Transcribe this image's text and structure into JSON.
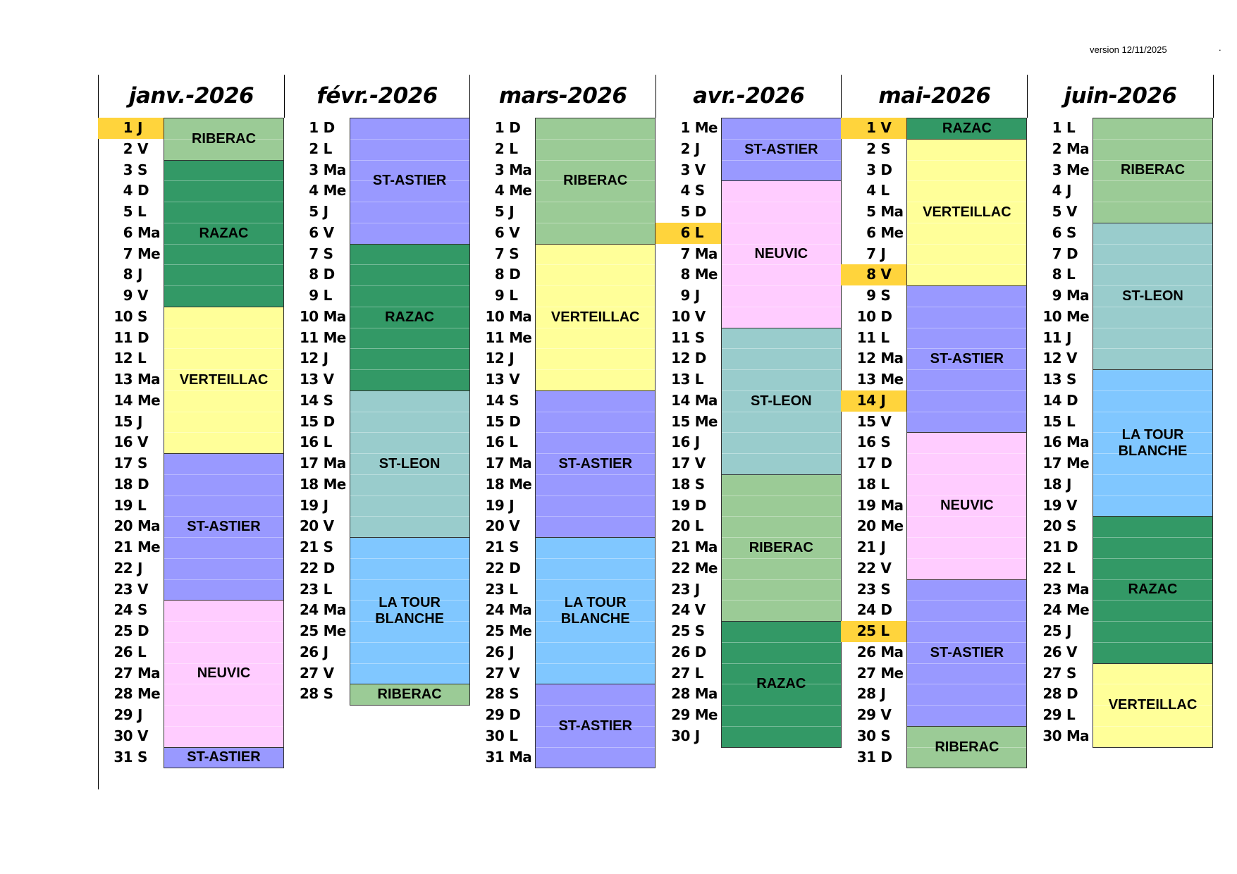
{
  "version": "version 12/11/2025",
  "version_mark": ".",
  "highlight_color": "#ffd43c",
  "colors": {
    "RIBERAC": "#9bcb96",
    "RAZAC": "#339966",
    "VERTEILLAC": "#ffff99",
    "ST-ASTIER": "#9999ff",
    "NEUVIC": "#ffccff",
    "ST-LEON": "#99cccc",
    "LA TOUR BLANCHE": "#80c7ff"
  },
  "months": [
    {
      "title": "janv.-2026",
      "days": [
        {
          "n": "1",
          "d": "J"
        },
        {
          "n": "2",
          "d": "V"
        },
        {
          "n": "3",
          "d": "S"
        },
        {
          "n": "4",
          "d": "D"
        },
        {
          "n": "5",
          "d": "L"
        },
        {
          "n": "6",
          "d": "Ma"
        },
        {
          "n": "7",
          "d": "Me"
        },
        {
          "n": "8",
          "d": "J"
        },
        {
          "n": "9",
          "d": "V"
        },
        {
          "n": "10",
          "d": "S"
        },
        {
          "n": "11",
          "d": "D"
        },
        {
          "n": "12",
          "d": "L"
        },
        {
          "n": "13",
          "d": "Ma"
        },
        {
          "n": "14",
          "d": "Me"
        },
        {
          "n": "15",
          "d": "J"
        },
        {
          "n": "16",
          "d": "V"
        },
        {
          "n": "17",
          "d": "S"
        },
        {
          "n": "18",
          "d": "D"
        },
        {
          "n": "19",
          "d": "L"
        },
        {
          "n": "20",
          "d": "Ma"
        },
        {
          "n": "21",
          "d": "Me"
        },
        {
          "n": "22",
          "d": "J"
        },
        {
          "n": "23",
          "d": "V"
        },
        {
          "n": "24",
          "d": "S"
        },
        {
          "n": "25",
          "d": "D"
        },
        {
          "n": "26",
          "d": "L"
        },
        {
          "n": "27",
          "d": "Ma"
        },
        {
          "n": "28",
          "d": "Me"
        },
        {
          "n": "29",
          "d": "J"
        },
        {
          "n": "30",
          "d": "V"
        },
        {
          "n": "31",
          "d": "S"
        }
      ],
      "highlighted": [
        "1"
      ],
      "blocks": [
        {
          "label": "RIBERAC",
          "start": 1,
          "end": 2
        },
        {
          "label": "RAZAC",
          "start": 3,
          "end": 9
        },
        {
          "label": "VERTEILLAC",
          "start": 10,
          "end": 16
        },
        {
          "label": "ST-ASTIER",
          "start": 17,
          "end": 23
        },
        {
          "label": "NEUVIC",
          "start": 24,
          "end": 30
        },
        {
          "label": "ST-ASTIER",
          "start": 31,
          "end": 31
        }
      ]
    },
    {
      "title": "févr.-2026",
      "days": [
        {
          "n": "1",
          "d": "D"
        },
        {
          "n": "2",
          "d": "L"
        },
        {
          "n": "3",
          "d": "Ma"
        },
        {
          "n": "4",
          "d": "Me"
        },
        {
          "n": "5",
          "d": "J"
        },
        {
          "n": "6",
          "d": "V"
        },
        {
          "n": "7",
          "d": "S"
        },
        {
          "n": "8",
          "d": "D"
        },
        {
          "n": "9",
          "d": "L"
        },
        {
          "n": "10",
          "d": "Ma"
        },
        {
          "n": "11",
          "d": "Me"
        },
        {
          "n": "12",
          "d": "J"
        },
        {
          "n": "13",
          "d": "V"
        },
        {
          "n": "14",
          "d": "S"
        },
        {
          "n": "15",
          "d": "D"
        },
        {
          "n": "16",
          "d": "L"
        },
        {
          "n": "17",
          "d": "Ma"
        },
        {
          "n": "18",
          "d": "Me"
        },
        {
          "n": "19",
          "d": "J"
        },
        {
          "n": "20",
          "d": "V"
        },
        {
          "n": "21",
          "d": "S"
        },
        {
          "n": "22",
          "d": "D"
        },
        {
          "n": "23",
          "d": "L"
        },
        {
          "n": "24",
          "d": "Ma"
        },
        {
          "n": "25",
          "d": "Me"
        },
        {
          "n": "26",
          "d": "J"
        },
        {
          "n": "27",
          "d": "V"
        },
        {
          "n": "28",
          "d": "S"
        }
      ],
      "highlighted": [],
      "blocks": [
        {
          "label": "ST-ASTIER",
          "start": 1,
          "end": 6
        },
        {
          "label": "RAZAC",
          "start": 7,
          "end": 13
        },
        {
          "label": "ST-LEON",
          "start": 14,
          "end": 20
        },
        {
          "label": "LA TOUR BLANCHE",
          "start": 21,
          "end": 27
        },
        {
          "label": "RIBERAC",
          "start": 28,
          "end": 28
        }
      ]
    },
    {
      "title": "mars-2026",
      "days": [
        {
          "n": "1",
          "d": "D"
        },
        {
          "n": "2",
          "d": "L"
        },
        {
          "n": "3",
          "d": "Ma"
        },
        {
          "n": "4",
          "d": "Me"
        },
        {
          "n": "5",
          "d": "J"
        },
        {
          "n": "6",
          "d": "V"
        },
        {
          "n": "7",
          "d": "S"
        },
        {
          "n": "8",
          "d": "D"
        },
        {
          "n": "9",
          "d": "L"
        },
        {
          "n": "10",
          "d": "Ma"
        },
        {
          "n": "11",
          "d": "Me"
        },
        {
          "n": "12",
          "d": "J"
        },
        {
          "n": "13",
          "d": "V"
        },
        {
          "n": "14",
          "d": "S"
        },
        {
          "n": "15",
          "d": "D"
        },
        {
          "n": "16",
          "d": "L"
        },
        {
          "n": "17",
          "d": "Ma"
        },
        {
          "n": "18",
          "d": "Me"
        },
        {
          "n": "19",
          "d": "J"
        },
        {
          "n": "20",
          "d": "V"
        },
        {
          "n": "21",
          "d": "S"
        },
        {
          "n": "22",
          "d": "D"
        },
        {
          "n": "23",
          "d": "L"
        },
        {
          "n": "24",
          "d": "Ma"
        },
        {
          "n": "25",
          "d": "Me"
        },
        {
          "n": "26",
          "d": "J"
        },
        {
          "n": "27",
          "d": "V"
        },
        {
          "n": "28",
          "d": "S"
        },
        {
          "n": "29",
          "d": "D"
        },
        {
          "n": "30",
          "d": "L"
        },
        {
          "n": "31",
          "d": "Ma"
        }
      ],
      "highlighted": [],
      "blocks": [
        {
          "label": "RIBERAC",
          "start": 1,
          "end": 6
        },
        {
          "label": "VERTEILLAC",
          "start": 7,
          "end": 13
        },
        {
          "label": "ST-ASTIER",
          "start": 14,
          "end": 20
        },
        {
          "label": "LA TOUR BLANCHE",
          "start": 21,
          "end": 27
        },
        {
          "label": "ST-ASTIER",
          "start": 28,
          "end": 31
        }
      ]
    },
    {
      "title": "avr.-2026",
      "days": [
        {
          "n": "1",
          "d": "Me"
        },
        {
          "n": "2",
          "d": "J"
        },
        {
          "n": "3",
          "d": "V"
        },
        {
          "n": "4",
          "d": "S"
        },
        {
          "n": "5",
          "d": "D"
        },
        {
          "n": "6",
          "d": "L"
        },
        {
          "n": "7",
          "d": "Ma"
        },
        {
          "n": "8",
          "d": "Me"
        },
        {
          "n": "9",
          "d": "J"
        },
        {
          "n": "10",
          "d": "V"
        },
        {
          "n": "11",
          "d": "S"
        },
        {
          "n": "12",
          "d": "D"
        },
        {
          "n": "13",
          "d": "L"
        },
        {
          "n": "14",
          "d": "Ma"
        },
        {
          "n": "15",
          "d": "Me"
        },
        {
          "n": "16",
          "d": "J"
        },
        {
          "n": "17",
          "d": "V"
        },
        {
          "n": "18",
          "d": "S"
        },
        {
          "n": "19",
          "d": "D"
        },
        {
          "n": "20",
          "d": "L"
        },
        {
          "n": "21",
          "d": "Ma"
        },
        {
          "n": "22",
          "d": "Me"
        },
        {
          "n": "23",
          "d": "J"
        },
        {
          "n": "24",
          "d": "V"
        },
        {
          "n": "25",
          "d": "S"
        },
        {
          "n": "26",
          "d": "D"
        },
        {
          "n": "27",
          "d": "L"
        },
        {
          "n": "28",
          "d": "Ma"
        },
        {
          "n": "29",
          "d": "Me"
        },
        {
          "n": "30",
          "d": "J"
        }
      ],
      "highlighted": [
        "6"
      ],
      "blocks": [
        {
          "label": "ST-ASTIER",
          "start": 1,
          "end": 3
        },
        {
          "label": "NEUVIC",
          "start": 4,
          "end": 10
        },
        {
          "label": "ST-LEON",
          "start": 11,
          "end": 17
        },
        {
          "label": "RIBERAC",
          "start": 18,
          "end": 24
        },
        {
          "label": "RAZAC",
          "start": 25,
          "end": 30
        }
      ]
    },
    {
      "title": "mai-2026",
      "days": [
        {
          "n": "1",
          "d": "V"
        },
        {
          "n": "2",
          "d": "S"
        },
        {
          "n": "3",
          "d": "D"
        },
        {
          "n": "4",
          "d": "L"
        },
        {
          "n": "5",
          "d": "Ma"
        },
        {
          "n": "6",
          "d": "Me"
        },
        {
          "n": "7",
          "d": "J"
        },
        {
          "n": "8",
          "d": "V"
        },
        {
          "n": "9",
          "d": "S"
        },
        {
          "n": "10",
          "d": "D"
        },
        {
          "n": "11",
          "d": "L"
        },
        {
          "n": "12",
          "d": "Ma"
        },
        {
          "n": "13",
          "d": "Me"
        },
        {
          "n": "14",
          "d": "J"
        },
        {
          "n": "15",
          "d": "V"
        },
        {
          "n": "16",
          "d": "S"
        },
        {
          "n": "17",
          "d": "D"
        },
        {
          "n": "18",
          "d": "L"
        },
        {
          "n": "19",
          "d": "Ma"
        },
        {
          "n": "20",
          "d": "Me"
        },
        {
          "n": "21",
          "d": "J"
        },
        {
          "n": "22",
          "d": "V"
        },
        {
          "n": "23",
          "d": "S"
        },
        {
          "n": "24",
          "d": "D"
        },
        {
          "n": "25",
          "d": "L"
        },
        {
          "n": "26",
          "d": "Ma"
        },
        {
          "n": "27",
          "d": "Me"
        },
        {
          "n": "28",
          "d": "J"
        },
        {
          "n": "29",
          "d": "V"
        },
        {
          "n": "30",
          "d": "S"
        },
        {
          "n": "31",
          "d": "D"
        }
      ],
      "highlighted": [
        "1",
        "8",
        "14",
        "25"
      ],
      "blocks": [
        {
          "label": "RAZAC",
          "start": 1,
          "end": 1
        },
        {
          "label": "VERTEILLAC",
          "start": 2,
          "end": 8
        },
        {
          "label": "ST-ASTIER",
          "start": 9,
          "end": 15
        },
        {
          "label": "NEUVIC",
          "start": 16,
          "end": 22
        },
        {
          "label": "ST-ASTIER",
          "start": 23,
          "end": 29
        },
        {
          "label": "RIBERAC",
          "start": 30,
          "end": 31
        }
      ]
    },
    {
      "title": "juin-2026",
      "days": [
        {
          "n": "1",
          "d": "L"
        },
        {
          "n": "2",
          "d": "Ma"
        },
        {
          "n": "3",
          "d": "Me"
        },
        {
          "n": "4",
          "d": "J"
        },
        {
          "n": "5",
          "d": "V"
        },
        {
          "n": "6",
          "d": "S"
        },
        {
          "n": "7",
          "d": "D"
        },
        {
          "n": "8",
          "d": "L"
        },
        {
          "n": "9",
          "d": "Ma"
        },
        {
          "n": "10",
          "d": "Me"
        },
        {
          "n": "11",
          "d": "J"
        },
        {
          "n": "12",
          "d": "V"
        },
        {
          "n": "13",
          "d": "S"
        },
        {
          "n": "14",
          "d": "D"
        },
        {
          "n": "15",
          "d": "L"
        },
        {
          "n": "16",
          "d": "Ma"
        },
        {
          "n": "17",
          "d": "Me"
        },
        {
          "n": "18",
          "d": "J"
        },
        {
          "n": "19",
          "d": "V"
        },
        {
          "n": "20",
          "d": "S"
        },
        {
          "n": "21",
          "d": "D"
        },
        {
          "n": "22",
          "d": "L"
        },
        {
          "n": "23",
          "d": "Ma"
        },
        {
          "n": "24",
          "d": "Me"
        },
        {
          "n": "25",
          "d": "J"
        },
        {
          "n": "26",
          "d": "V"
        },
        {
          "n": "27",
          "d": "S"
        },
        {
          "n": "28",
          "d": "D"
        },
        {
          "n": "29",
          "d": "L"
        },
        {
          "n": "30",
          "d": "Ma"
        }
      ],
      "highlighted": [],
      "blocks": [
        {
          "label": "RIBERAC",
          "start": 1,
          "end": 5
        },
        {
          "label": "ST-LEON",
          "start": 6,
          "end": 12
        },
        {
          "label": "LA TOUR BLANCHE",
          "start": 13,
          "end": 19
        },
        {
          "label": "RAZAC",
          "start": 20,
          "end": 26
        },
        {
          "label": "VERTEILLAC",
          "start": 27,
          "end": 30
        }
      ]
    }
  ]
}
